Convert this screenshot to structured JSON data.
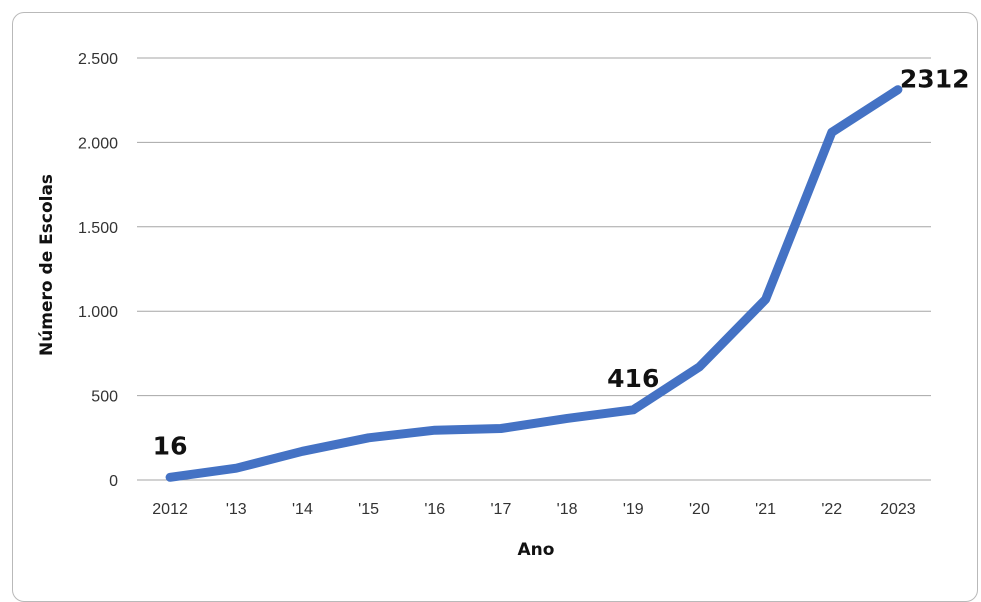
{
  "chart_data": {
    "type": "line",
    "title": "",
    "xlabel": "Ano",
    "ylabel": "Número de Escolas",
    "categories": [
      "2012",
      "'13",
      "'14",
      "'15",
      "'16",
      "'17",
      "'18",
      "'19",
      "'20",
      "'21",
      "'22",
      "2023"
    ],
    "series": [
      {
        "values": [
          16,
          70,
          170,
          250,
          295,
          305,
          365,
          416,
          670,
          1070,
          2060,
          2312
        ]
      }
    ],
    "ylim": [
      0,
      2500
    ],
    "yticks": [
      0,
      500,
      1000,
      1500,
      2000,
      2500
    ],
    "ytick_labels": [
      "0",
      "500",
      "1.000",
      "1.500",
      "2.000",
      "2.500"
    ],
    "data_labels": [
      {
        "index": 0,
        "text": "16"
      },
      {
        "index": 7,
        "text": "416"
      },
      {
        "index": 11,
        "text": "2312"
      }
    ],
    "grid": true,
    "legend": "none",
    "line_color": "#4472C4",
    "grid_color": "#a6a6a6"
  }
}
